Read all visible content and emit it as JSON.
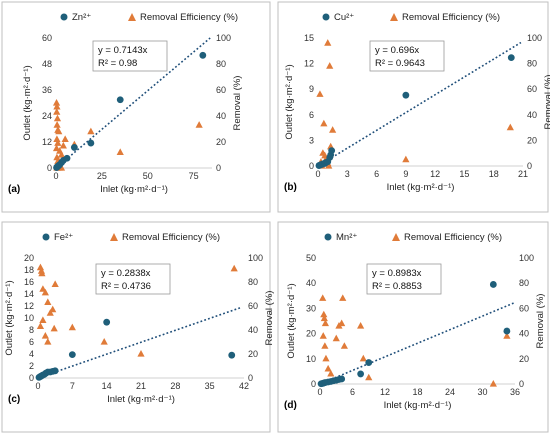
{
  "colors": {
    "outlet_marker": "#1f5f7a",
    "removal_marker": "#e07b39",
    "trendline": "#1f4e79",
    "frame": "#bfbfbf"
  },
  "chart_data": [
    {
      "type": "scatter",
      "panel_label": "(a)",
      "xlabel": "Inlet (kg·m²·d⁻¹)",
      "ylabel": "Outlet (kg·m²·d⁻¹)",
      "y2label": "Removal (%)",
      "xlim": [
        0,
        85
      ],
      "xticks": [
        0,
        25,
        50,
        75
      ],
      "ylim": [
        0,
        60
      ],
      "yticks": [
        0,
        12,
        24,
        36,
        48,
        60
      ],
      "y2lim": [
        0,
        100
      ],
      "y2ticks": [
        0,
        20,
        40,
        60,
        80,
        100
      ],
      "legend": {
        "outlet": "Zn²⁺",
        "removal": "Removal Efficiency (%)"
      },
      "equation": "y = 0.7143x",
      "r2": "R² = 0.98",
      "trend_slope": 0.7143,
      "outlet_points": [
        [
          0.3,
          0.2
        ],
        [
          0.5,
          0.4
        ],
        [
          0.8,
          0.6
        ],
        [
          1.2,
          0.9
        ],
        [
          1.5,
          1.2
        ],
        [
          2,
          1.5
        ],
        [
          3,
          2.5
        ],
        [
          4,
          3.5
        ],
        [
          6,
          4.5
        ],
        [
          10,
          9.5
        ],
        [
          19,
          11.5
        ],
        [
          35,
          31.5
        ],
        [
          80,
          52
        ]
      ],
      "removal_points": [
        [
          0.3,
          50
        ],
        [
          0.5,
          47
        ],
        [
          0.4,
          43
        ],
        [
          0.8,
          38
        ],
        [
          0.6,
          33
        ],
        [
          1,
          29
        ],
        [
          1.5,
          28
        ],
        [
          0.5,
          22
        ],
        [
          1,
          19
        ],
        [
          0.3,
          15
        ],
        [
          2,
          13
        ],
        [
          3,
          10
        ],
        [
          0.5,
          8
        ],
        [
          1,
          5
        ],
        [
          2,
          2
        ],
        [
          0.5,
          0
        ],
        [
          1,
          0
        ],
        [
          2,
          0
        ],
        [
          3,
          0
        ],
        [
          4,
          17
        ],
        [
          5,
          22
        ],
        [
          10,
          18
        ],
        [
          19,
          28
        ],
        [
          35,
          12
        ],
        [
          78,
          33
        ]
      ]
    },
    {
      "type": "scatter",
      "panel_label": "(b)",
      "xlabel": "Inlet (kg·m²·d⁻¹)",
      "ylabel": "Outlet (kg·m²·d⁻¹)",
      "y2label": "Removal (%)",
      "xlim": [
        0,
        21
      ],
      "xticks": [
        0,
        3,
        6,
        9,
        12,
        15,
        18,
        21
      ],
      "ylim": [
        0,
        15
      ],
      "yticks": [
        0,
        3,
        6,
        9,
        12,
        15
      ],
      "y2lim": [
        0,
        100
      ],
      "y2ticks": [
        0,
        20,
        40,
        60,
        80,
        100
      ],
      "legend": {
        "outlet": "Cu²⁺",
        "removal": "Removal Efficiency (%)"
      },
      "equation": "y = 0.696x",
      "r2": "R² = 0.9643",
      "trend_slope": 0.696,
      "outlet_points": [
        [
          0.1,
          0.05
        ],
        [
          0.2,
          0.1
        ],
        [
          0.3,
          0.15
        ],
        [
          0.4,
          0.2
        ],
        [
          0.5,
          0.25
        ],
        [
          0.7,
          0.3
        ],
        [
          0.8,
          0.4
        ],
        [
          1,
          0.5
        ],
        [
          1.2,
          1
        ],
        [
          1.3,
          1.3
        ],
        [
          1.4,
          1.8
        ],
        [
          9,
          8.3
        ],
        [
          19.8,
          12.7
        ]
      ],
      "removal_points": [
        [
          0.2,
          56
        ],
        [
          0.5,
          10
        ],
        [
          0.7,
          8
        ],
        [
          0.8,
          5
        ],
        [
          1,
          2
        ],
        [
          1.1,
          0
        ],
        [
          0.4,
          0
        ],
        [
          0.6,
          33
        ],
        [
          1,
          96
        ],
        [
          1.2,
          78
        ],
        [
          1.5,
          28
        ],
        [
          1.3,
          15
        ],
        [
          0.3,
          3
        ],
        [
          9,
          5
        ],
        [
          19.7,
          30
        ]
      ]
    },
    {
      "type": "scatter",
      "panel_label": "(c)",
      "xlabel": "Inlet (kg·m²·d⁻¹)",
      "ylabel": "Outlet (kg·m²·d⁻¹)",
      "y2label": "Removal (%)",
      "xlim": [
        0,
        42
      ],
      "xticks": [
        0,
        7,
        14,
        21,
        28,
        35,
        42
      ],
      "ylim": [
        0,
        20
      ],
      "yticks": [
        0,
        2,
        4,
        6,
        8,
        10,
        12,
        14,
        16,
        18,
        20
      ],
      "y2lim": [
        0,
        100
      ],
      "y2ticks": [
        0,
        20,
        40,
        60,
        80,
        100
      ],
      "legend": {
        "outlet": "Fe²⁺",
        "removal": "Removal Efficiency (%)"
      },
      "equation": "y = 0.2838x",
      "r2": "R² = 0.4736",
      "trend_slope": 0.2838,
      "outlet_points": [
        [
          0.2,
          0.1
        ],
        [
          0.4,
          0.2
        ],
        [
          0.6,
          0.3
        ],
        [
          0.8,
          0.4
        ],
        [
          1,
          0.5
        ],
        [
          1.3,
          0.6
        ],
        [
          1.6,
          0.8
        ],
        [
          2,
          1
        ],
        [
          2.5,
          1
        ],
        [
          3,
          1.1
        ],
        [
          3.5,
          1.2
        ],
        [
          7,
          3.9
        ],
        [
          14,
          9.3
        ],
        [
          39.5,
          3.8
        ]
      ],
      "removal_points": [
        [
          0.5,
          92
        ],
        [
          0.7,
          89
        ],
        [
          0.8,
          87
        ],
        [
          1,
          74
        ],
        [
          1.5,
          71
        ],
        [
          2,
          63
        ],
        [
          2.5,
          54
        ],
        [
          1,
          48
        ],
        [
          0.5,
          43
        ],
        [
          1.5,
          35
        ],
        [
          2,
          30
        ],
        [
          3.5,
          78
        ],
        [
          3,
          57
        ],
        [
          3.3,
          41
        ],
        [
          7,
          42
        ],
        [
          13.5,
          30
        ],
        [
          21,
          20
        ],
        [
          40,
          91
        ]
      ]
    },
    {
      "type": "scatter",
      "panel_label": "(d)",
      "xlabel": "Inlet (kg·m²·d⁻¹)",
      "ylabel": "Outlet (kg·m²·d⁻¹)",
      "y2label": "Removal (%)",
      "xlim": [
        0,
        36
      ],
      "xticks": [
        0,
        6,
        12,
        18,
        24,
        30,
        36
      ],
      "ylim": [
        0,
        50
      ],
      "yticks": [
        0,
        10,
        20,
        30,
        40,
        50
      ],
      "y2lim": [
        0,
        100
      ],
      "y2ticks": [
        0,
        20,
        40,
        60,
        80,
        100
      ],
      "legend": {
        "outlet": "Mn²⁺",
        "removal": "Removal Efficiency (%)"
      },
      "equation": "y = 0.8983x",
      "r2": "R² = 0.8853",
      "trend_slope": 0.8983,
      "outlet_points": [
        [
          0.2,
          0.1
        ],
        [
          0.4,
          0.2
        ],
        [
          0.6,
          0.3
        ],
        [
          0.8,
          0.5
        ],
        [
          1,
          0.6
        ],
        [
          1.5,
          0.8
        ],
        [
          2,
          1
        ],
        [
          2.5,
          1.3
        ],
        [
          3,
          1.5
        ],
        [
          3.5,
          1.8
        ],
        [
          4,
          2
        ],
        [
          7.5,
          4
        ],
        [
          9,
          8.5
        ],
        [
          32,
          39.5
        ],
        [
          34.5,
          21
        ]
      ],
      "removal_points": [
        [
          0.5,
          68
        ],
        [
          0.7,
          55
        ],
        [
          0.8,
          52
        ],
        [
          1,
          48
        ],
        [
          0.6,
          38
        ],
        [
          0.9,
          30
        ],
        [
          1.1,
          20
        ],
        [
          1.5,
          12
        ],
        [
          2,
          8
        ],
        [
          3,
          36
        ],
        [
          3.5,
          46
        ],
        [
          4,
          48
        ],
        [
          4.2,
          68
        ],
        [
          4.5,
          30
        ],
        [
          7.5,
          46
        ],
        [
          8,
          20
        ],
        [
          9,
          5
        ],
        [
          32,
          0
        ],
        [
          34.5,
          38
        ]
      ]
    }
  ]
}
